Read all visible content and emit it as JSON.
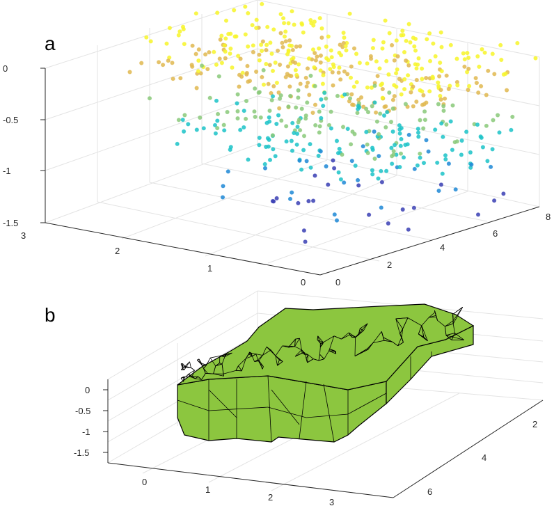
{
  "panels": [
    {
      "label": "a"
    },
    {
      "label": "b"
    }
  ],
  "chart_data": [
    {
      "type": "scatter",
      "subtype": "3d-scatter",
      "panel": "a",
      "title": "",
      "xlabel": "",
      "ylabel": "",
      "zlabel": "",
      "xlim": [
        0,
        3
      ],
      "ylim": [
        0,
        8
      ],
      "zlim": [
        -1.5,
        0
      ],
      "x_ticks": [
        "0",
        "1",
        "2",
        "3"
      ],
      "y_ticks": [
        "0",
        "2",
        "4",
        "6",
        "8"
      ],
      "z_ticks": [
        "-1.5",
        "-1",
        "-0.5",
        "0"
      ],
      "grid": true,
      "colormap": "parula",
      "colormap_colors": [
        "#3a3fb4",
        "#1e88d6",
        "#1cc3c8",
        "#8ac97a",
        "#e0b850",
        "#f7f52a"
      ],
      "clusters": [
        {
          "description_color": "yellow",
          "x_range": [
            0.0,
            3.0
          ],
          "y_range": [
            3.0,
            8.0
          ],
          "z_range": [
            -0.3,
            0.1
          ],
          "approx_count": 330
        },
        {
          "description_color": "orange",
          "x_range": [
            0.5,
            2.5
          ],
          "y_range": [
            3.0,
            7.0
          ],
          "z_range": [
            -0.6,
            -0.2
          ],
          "approx_count": 45
        },
        {
          "description_color": "green",
          "x_range": [
            0.5,
            3.0
          ],
          "y_range": [
            3.0,
            6.5
          ],
          "z_range": [
            -0.8,
            -0.4
          ],
          "approx_count": 60
        },
        {
          "description_color": "cyan",
          "x_range": [
            0.0,
            2.5
          ],
          "y_range": [
            3.0,
            8.0
          ],
          "z_range": [
            -1.0,
            -0.6
          ],
          "approx_count": 170
        },
        {
          "description_color": "blue",
          "x_range": [
            0.0,
            2.0
          ],
          "y_range": [
            1.5,
            7.0
          ],
          "z_range": [
            -1.5,
            -1.0
          ],
          "approx_count": 40
        }
      ]
    },
    {
      "type": "other",
      "subtype": "3d-triangulated-surface",
      "panel": "b",
      "title": "",
      "xlabel": "",
      "ylabel": "",
      "zlabel": "",
      "x_ticks": [
        "0",
        "1",
        "2",
        "3"
      ],
      "y_ticks": [
        "2",
        "4",
        "6"
      ],
      "z_ticks": [
        "-1.5",
        "-1",
        "-0.5",
        "0"
      ],
      "grid": true,
      "face_color": "#8cc63f",
      "edge_color": "#000000"
    }
  ]
}
